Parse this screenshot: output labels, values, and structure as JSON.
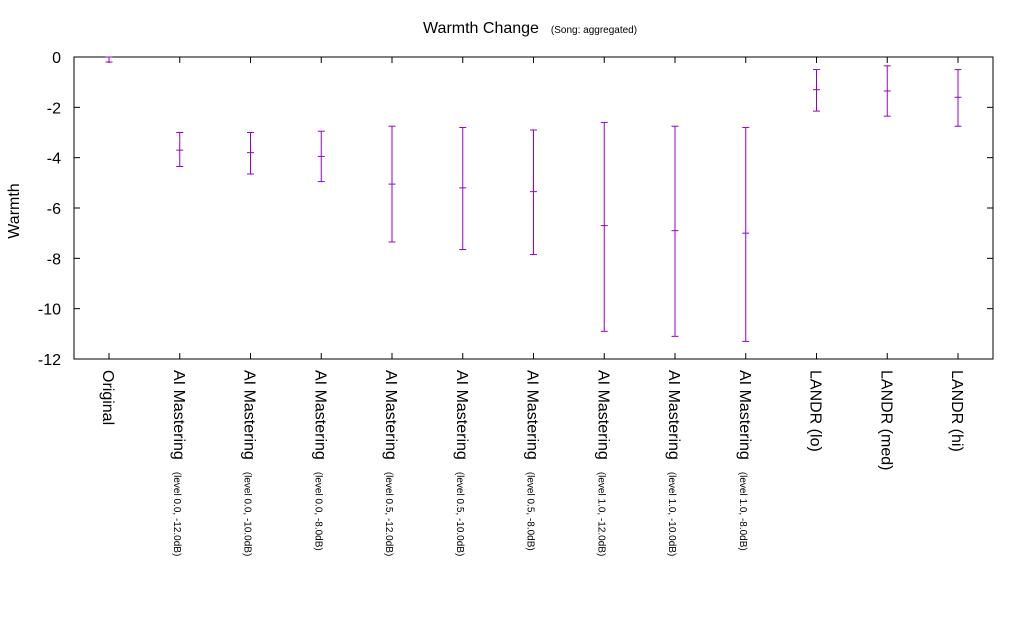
{
  "chart_data": {
    "type": "errorbar",
    "title": "Warmth Change",
    "subtitle": "(Song: aggregated)",
    "ylabel": "Warmth",
    "xlabel": "",
    "ylim": [
      -12,
      0
    ],
    "yticks": [
      0,
      -2,
      -4,
      -6,
      -8,
      -10,
      -12
    ],
    "grid": false,
    "series_color": "#9400d3",
    "categories": [
      {
        "main": "Original",
        "sub": ""
      },
      {
        "main": "AI Mastering",
        "sub": "(level 0.0, -12.0dB)"
      },
      {
        "main": "AI Mastering",
        "sub": "(level 0.0, -10.0dB)"
      },
      {
        "main": "AI Mastering",
        "sub": "(level 0.0, -8.0dB)"
      },
      {
        "main": "AI Mastering",
        "sub": "(level 0.5, -12.0dB)"
      },
      {
        "main": "AI Mastering",
        "sub": "(level 0.5, -10.0dB)"
      },
      {
        "main": "AI Mastering",
        "sub": "(level 0.5, -8.0dB)"
      },
      {
        "main": "AI Mastering",
        "sub": "(level 1.0, -12.0dB)"
      },
      {
        "main": "AI Mastering",
        "sub": "(level 1.0, -10.0dB)"
      },
      {
        "main": "AI Mastering",
        "sub": "(level 1.0, -8.0dB)"
      },
      {
        "main": "LANDR (lo)",
        "sub": ""
      },
      {
        "main": "LANDR (med)",
        "sub": ""
      },
      {
        "main": "LANDR (hi)",
        "sub": ""
      }
    ],
    "points": [
      {
        "mean": 0.0,
        "low": -0.2,
        "high": 0.2
      },
      {
        "mean": -3.7,
        "low": -4.35,
        "high": -3.0
      },
      {
        "mean": -3.8,
        "low": -4.65,
        "high": -3.0
      },
      {
        "mean": -3.95,
        "low": -4.95,
        "high": -2.95
      },
      {
        "mean": -5.05,
        "low": -7.35,
        "high": -2.75
      },
      {
        "mean": -5.2,
        "low": -7.65,
        "high": -2.8
      },
      {
        "mean": -5.35,
        "low": -7.85,
        "high": -2.9
      },
      {
        "mean": -6.7,
        "low": -10.9,
        "high": -2.6
      },
      {
        "mean": -6.9,
        "low": -11.1,
        "high": -2.75
      },
      {
        "mean": -7.0,
        "low": -11.3,
        "high": -2.8
      },
      {
        "mean": -1.3,
        "low": -2.15,
        "high": -0.5
      },
      {
        "mean": -1.35,
        "low": -2.35,
        "high": -0.35
      },
      {
        "mean": -1.6,
        "low": -2.75,
        "high": -0.5
      }
    ]
  }
}
